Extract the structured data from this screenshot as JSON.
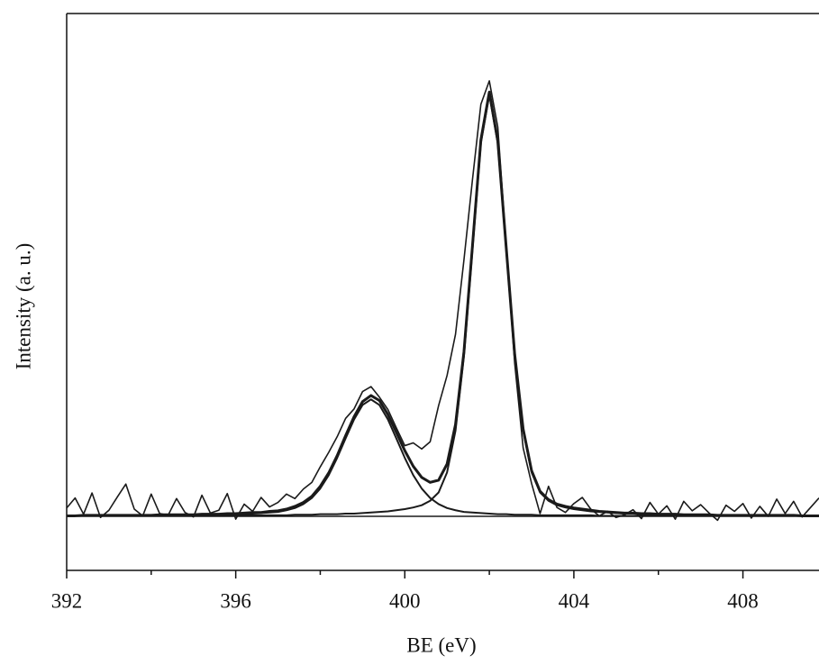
{
  "chart_data": {
    "type": "line",
    "x_label": "BE (eV)",
    "y_label": "Intensity (a. u.)",
    "x": [
      392.0,
      392.2,
      392.4,
      392.6,
      392.8,
      393.0,
      393.2,
      393.4,
      393.6,
      393.8,
      394.0,
      394.2,
      394.4,
      394.6,
      394.8,
      395.0,
      395.2,
      395.4,
      395.6,
      395.8,
      396.0,
      396.2,
      396.4,
      396.6,
      396.8,
      397.0,
      397.2,
      397.4,
      397.6,
      397.8,
      398.0,
      398.2,
      398.4,
      398.6,
      398.8,
      399.0,
      399.2,
      399.4,
      399.6,
      399.8,
      400.0,
      400.2,
      400.4,
      400.6,
      400.8,
      401.0,
      401.2,
      401.4,
      401.6,
      401.8,
      402.0,
      402.2,
      402.4,
      402.6,
      402.8,
      403.0,
      403.2,
      403.4,
      403.6,
      403.8,
      404.0,
      404.2,
      404.4,
      404.6,
      404.8,
      405.0,
      405.2,
      405.4,
      405.6,
      405.8,
      406.0,
      406.2,
      406.4,
      406.6,
      406.8,
      407.0,
      407.2,
      407.4,
      407.6,
      407.8,
      408.0,
      408.2,
      408.4,
      408.6,
      408.8,
      409.0,
      409.2,
      409.4,
      409.6,
      409.8
    ],
    "series": [
      {
        "color": "#1a1a1a",
        "line_width": 1.6,
        "values": [
          11.2,
          13.0,
          10.1,
          13.9,
          9.5,
          10.8,
          13.2,
          15.5,
          11.0,
          9.8,
          13.7,
          10.2,
          9.9,
          12.9,
          10.4,
          9.6,
          13.5,
          10.3,
          10.8,
          13.8,
          9.2,
          11.9,
          10.6,
          13.1,
          11.4,
          12.2,
          13.7,
          12.9,
          14.6,
          15.8,
          18.6,
          21.2,
          24.0,
          27.3,
          29.0,
          32.1,
          33.0,
          31.1,
          28.9,
          25.6,
          22.4,
          22.9,
          21.8,
          23.1,
          29.6,
          35.0,
          42.4,
          55.8,
          70.1,
          83.7,
          87.9,
          79.6,
          58.3,
          37.2,
          22.0,
          15.6,
          10.2,
          15.1,
          11.3,
          10.4,
          12.0,
          13.1,
          11.0,
          9.8,
          10.6,
          9.5,
          10.0,
          10.9,
          9.3,
          12.2,
          10.1,
          11.6,
          9.2,
          12.4,
          10.7,
          11.8,
          10.3,
          9.0,
          11.7,
          10.6,
          12.0,
          9.4,
          11.5,
          9.7,
          12.8,
          10.2,
          12.4,
          9.6,
          11.3,
          13.0
        ]
      },
      {
        "color": "#1a1a1a",
        "line_width": 1.5,
        "values": [
          9.7,
          9.7,
          9.7,
          9.7,
          9.7,
          9.7,
          9.7,
          9.7,
          9.7,
          9.7,
          9.7,
          9.7,
          9.7,
          9.7,
          9.7,
          9.7,
          9.7,
          9.7,
          9.7,
          9.7,
          9.7,
          9.7,
          9.7,
          9.7,
          9.7,
          9.7,
          9.7,
          9.7,
          9.7,
          9.7,
          9.7,
          9.7,
          9.7,
          9.7,
          9.7,
          9.7,
          9.7,
          9.7,
          9.7,
          9.7,
          9.7,
          9.7,
          9.7,
          9.7,
          9.7,
          9.7,
          9.7,
          9.7,
          9.7,
          9.7,
          9.7,
          9.7,
          9.7,
          9.7,
          9.7,
          9.7,
          9.7,
          9.7,
          9.7,
          9.7,
          9.7,
          9.7,
          9.7,
          9.7,
          9.7,
          9.7,
          9.7,
          9.7,
          9.7,
          9.7,
          9.7,
          9.7,
          9.7,
          9.7,
          9.7,
          9.7,
          9.7,
          9.7,
          9.7,
          9.7,
          9.7,
          9.7,
          9.7,
          9.7,
          9.7,
          9.7,
          9.7,
          9.7,
          9.7,
          9.7
        ]
      },
      {
        "color": "#1a1a1a",
        "line_width": 2,
        "values": [
          9.8,
          9.8,
          9.8,
          9.8,
          9.8,
          9.8,
          9.8,
          9.8,
          9.8,
          9.8,
          9.9,
          9.9,
          9.9,
          9.9,
          9.9,
          9.9,
          9.9,
          10.0,
          10.0,
          10.0,
          10.1,
          10.1,
          10.2,
          10.3,
          10.4,
          10.5,
          10.8,
          11.2,
          11.9,
          13.0,
          14.7,
          17.1,
          20.2,
          23.7,
          27.1,
          29.7,
          30.7,
          29.7,
          27.1,
          23.7,
          20.2,
          17.1,
          14.7,
          13.0,
          11.9,
          11.2,
          10.8,
          10.5,
          10.4,
          10.3,
          10.2,
          10.1,
          10.1,
          10.0,
          10.0,
          10.0,
          9.9,
          9.9,
          9.9,
          9.9,
          9.9,
          9.9,
          9.9,
          9.8,
          9.8,
          9.8,
          9.8,
          9.8,
          9.8,
          9.8,
          9.8,
          9.8,
          9.8,
          9.8,
          9.8,
          9.8,
          9.8,
          9.8,
          9.8,
          9.8,
          9.8,
          9.8,
          9.8,
          9.8,
          9.8,
          9.8,
          9.8,
          9.8,
          9.8,
          9.8
        ]
      },
      {
        "color": "#1a1a1a",
        "line_width": 2,
        "values": [
          9.8,
          9.8,
          9.8,
          9.8,
          9.8,
          9.8,
          9.8,
          9.8,
          9.8,
          9.8,
          9.8,
          9.8,
          9.8,
          9.8,
          9.8,
          9.8,
          9.8,
          9.8,
          9.8,
          9.9,
          9.9,
          9.9,
          9.9,
          9.9,
          9.9,
          9.9,
          9.9,
          10.0,
          10.0,
          10.0,
          10.1,
          10.1,
          10.1,
          10.2,
          10.2,
          10.3,
          10.4,
          10.5,
          10.6,
          10.8,
          11.0,
          11.3,
          11.7,
          12.5,
          14.0,
          17.6,
          25.1,
          38.5,
          57.5,
          76.7,
          85.4,
          76.7,
          57.5,
          38.5,
          25.1,
          17.6,
          14.0,
          12.5,
          11.7,
          11.3,
          11.0,
          10.8,
          10.6,
          10.5,
          10.4,
          10.3,
          10.2,
          10.2,
          10.1,
          10.1,
          10.1,
          10.0,
          10.0,
          10.0,
          9.9,
          9.9,
          9.9,
          9.9,
          9.9,
          9.9,
          9.9,
          9.9,
          9.8,
          9.8,
          9.8,
          9.8,
          9.8,
          9.8,
          9.8,
          9.8
        ]
      },
      {
        "color": "#1a1a1a",
        "line_width": 3,
        "values": [
          9.8,
          9.8,
          9.9,
          9.9,
          9.9,
          9.9,
          9.9,
          9.9,
          9.9,
          9.9,
          9.9,
          10.0,
          10.0,
          10.0,
          10.0,
          10.0,
          10.1,
          10.1,
          10.1,
          10.2,
          10.2,
          10.3,
          10.4,
          10.4,
          10.6,
          10.7,
          11.0,
          11.5,
          12.2,
          13.3,
          15.1,
          17.5,
          20.6,
          24.2,
          27.6,
          30.3,
          31.4,
          30.5,
          28.0,
          24.8,
          21.5,
          18.7,
          16.7,
          15.8,
          16.2,
          19.1,
          26.2,
          39.3,
          58.2,
          77.3,
          85.9,
          77.1,
          57.9,
          38.8,
          25.4,
          17.9,
          14.2,
          12.7,
          11.9,
          11.5,
          11.2,
          11.0,
          10.8,
          10.6,
          10.5,
          10.4,
          10.3,
          10.3,
          10.2,
          10.2,
          10.1,
          10.1,
          10.1,
          10.0,
          10.0,
          10.0,
          10.0,
          9.9,
          9.9,
          9.9,
          9.9,
          9.9,
          9.9,
          9.9,
          9.9,
          9.9,
          9.9,
          9.8,
          9.8,
          9.8
        ]
      }
    ],
    "xlim": [
      392,
      409.8
    ],
    "xticks": [
      392,
      396,
      400,
      404,
      408
    ],
    "x_minor_ticks": [
      394,
      398,
      402,
      406
    ],
    "ylim": [
      0,
      100
    ]
  }
}
